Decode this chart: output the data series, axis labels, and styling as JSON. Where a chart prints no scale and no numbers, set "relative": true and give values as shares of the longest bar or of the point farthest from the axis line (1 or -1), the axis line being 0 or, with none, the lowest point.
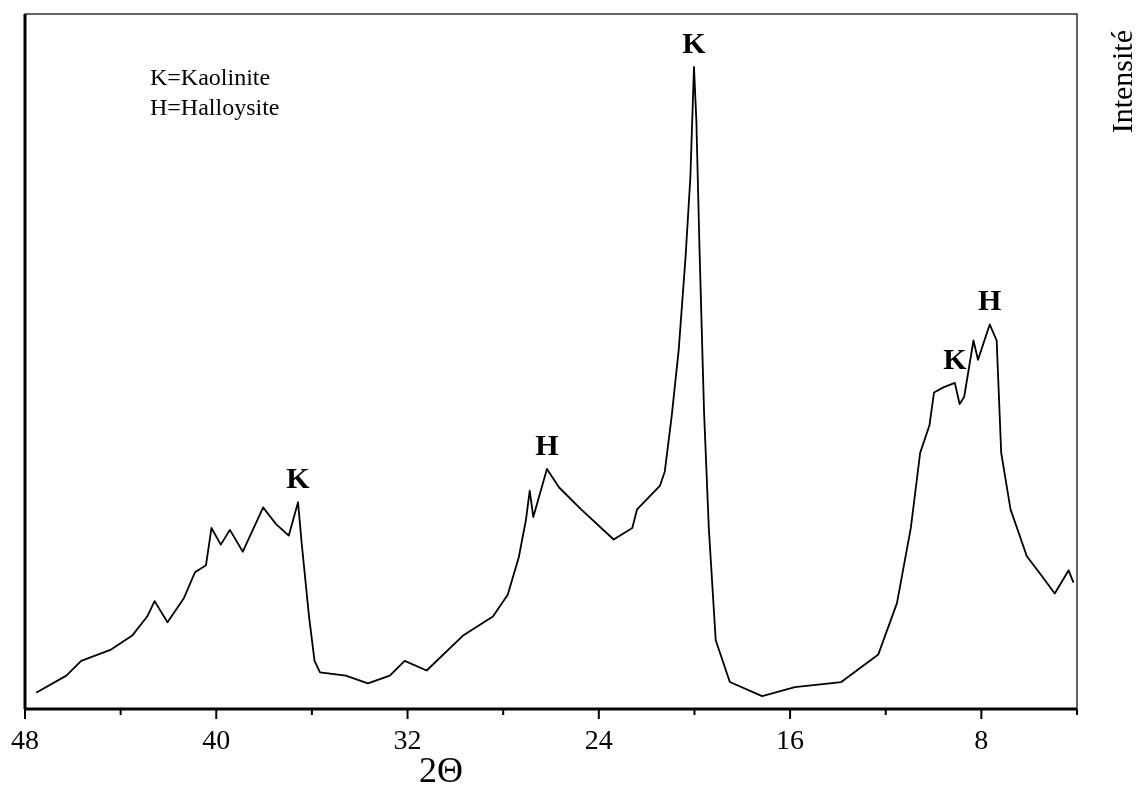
{
  "chart_data": {
    "type": "line",
    "relative": true,
    "xlabel": "2Θ",
    "ylabel": "Intensité",
    "xlim": [
      48,
      4
    ],
    "xticks": [
      48,
      {
        "value": 44,
        "label": null
      },
      40,
      {
        "value": 36,
        "label": null
      },
      32,
      {
        "value": 28,
        "label": null
      },
      24,
      {
        "value": 20,
        "label": null
      },
      16,
      {
        "value": 12,
        "label": null
      },
      8,
      {
        "value": 4,
        "label": null
      }
    ],
    "grid": false,
    "marker": "none",
    "line_style": "solid",
    "series": [
      {
        "color": "#000000",
        "x": [
          47.5,
          46.27,
          45.65,
          44.43,
          43.5,
          42.89,
          42.58,
          42.04,
          41.35,
          40.89,
          40.43,
          40.2,
          39.81,
          39.43,
          38.89,
          38.04,
          37.5,
          36.97,
          36.58,
          36.43,
          36.12,
          35.89,
          35.66,
          34.58,
          33.66,
          32.74,
          32.12,
          31.2,
          29.66,
          28.43,
          27.81,
          27.35,
          27.05,
          26.89,
          26.74,
          26.17,
          25.66,
          24.74,
          23.38,
          22.6,
          22.4,
          21.44,
          21.24,
          20.95,
          20.66,
          20.37,
          20.17,
          20.02,
          19.92,
          19.79,
          19.6,
          19.4,
          19.11,
          18.52,
          17.17,
          15.8,
          13.86,
          12.31,
          11.53,
          10.95,
          10.56,
          10.17,
          9.98,
          9.59,
          9.11,
          8.91,
          8.72,
          8.33,
          8.14,
          7.65,
          7.36,
          7.17,
          6.78,
          6.1,
          5.51,
          4.93,
          4.35,
          4.16
        ],
        "values": [
          0.026,
          0.052,
          0.075,
          0.092,
          0.115,
          0.144,
          0.168,
          0.135,
          0.173,
          0.213,
          0.224,
          0.282,
          0.256,
          0.279,
          0.245,
          0.314,
          0.288,
          0.27,
          0.322,
          0.259,
          0.144,
          0.075,
          0.057,
          0.052,
          0.04,
          0.052,
          0.075,
          0.06,
          0.115,
          0.144,
          0.178,
          0.236,
          0.294,
          0.34,
          0.299,
          0.374,
          0.345,
          0.311,
          0.264,
          0.282,
          0.311,
          0.348,
          0.37,
          0.457,
          0.559,
          0.705,
          0.829,
          1,
          0.916,
          0.719,
          0.464,
          0.282,
          0.107,
          0.042,
          0.02,
          0.034,
          0.042,
          0.085,
          0.165,
          0.282,
          0.399,
          0.442,
          0.493,
          0.501,
          0.508,
          0.475,
          0.486,
          0.574,
          0.544,
          0.599,
          0.574,
          0.399,
          0.311,
          0.238,
          0.209,
          0.18,
          0.216,
          0.198
        ]
      }
    ],
    "annotations": [
      "K=Kaolinite",
      "H=Halloysite",
      {
        "text": "K",
        "x": 36.58,
        "y": 0.322
      },
      {
        "text": "H",
        "x": 26.17,
        "y": 0.374
      },
      {
        "text": "K",
        "x": 20.02,
        "y": 1
      },
      {
        "text": "K",
        "x": 9.11,
        "y": 0.508
      },
      {
        "text": "H",
        "x": 7.65,
        "y": 0.599
      }
    ]
  }
}
